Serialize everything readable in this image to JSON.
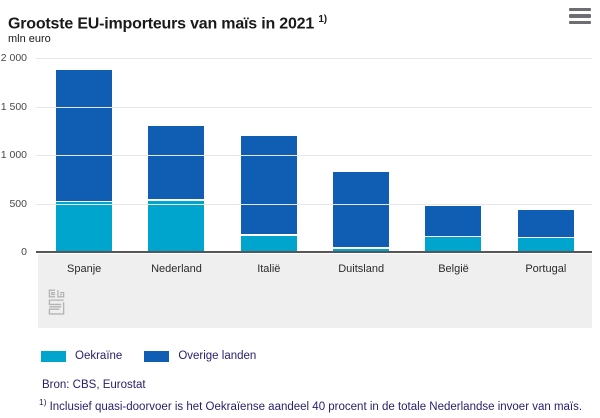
{
  "header": {
    "title": "Grootste EU-importeurs van maïs in 2021",
    "footnote_marker": "1)"
  },
  "chart_data": {
    "type": "bar",
    "stacked": true,
    "title": "Grootste EU-importeurs van maïs in 2021",
    "unit": "mln euro",
    "categories": [
      "Spanje",
      "Nederland",
      "Italië",
      "Duitsland",
      "België",
      "Portugal"
    ],
    "series": [
      {
        "name": "Oekraïne",
        "color": "#00a5cd",
        "values": [
          515,
          530,
          170,
          35,
          150,
          140
        ]
      },
      {
        "name": "Overige landen",
        "color": "#0f5eb4",
        "values": [
          1345,
          755,
          1010,
          775,
          310,
          280
        ]
      }
    ],
    "totals": [
      1860,
      1285,
      1180,
      810,
      460,
      420
    ],
    "ylim": [
      0,
      2000
    ],
    "ytick_values": [
      0,
      500,
      1000,
      1500,
      2000
    ],
    "ytick_labels": [
      "0",
      "500",
      "1 000",
      "1 500",
      "2 000"
    ],
    "grid": true,
    "legend_position": "bottom"
  },
  "footer": {
    "source": "Bron: CBS, Eurostat",
    "footnote_marker": "1)",
    "footnote_text": "Inclusief quasi-doorvoer is het Oekraïense aandeel 40 procent in de totale Nederlandse invoer van maïs."
  },
  "watermark": "cbs-logo",
  "colors": {
    "bar_light_blue": "#00a5cd",
    "bar_dark_blue": "#0f5eb4",
    "accent_text": "#271d6c",
    "axis_line": "#55555a",
    "grid_line": "#e7e7e7",
    "band_bg": "#efefef",
    "tick_text": "#47474f",
    "label_text": "#2a2a2a",
    "title_text": "#1a1a1a",
    "icon_gray": "#6e6e72",
    "logo_gray": "#b4b4b4"
  }
}
